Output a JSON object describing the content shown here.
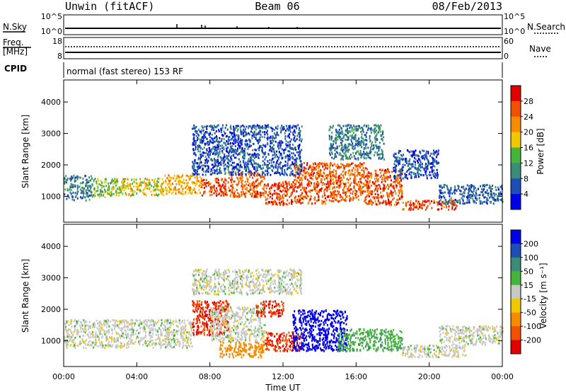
{
  "header": {
    "station": "Unwin (fitACF)",
    "beam": "Beam 06",
    "date": "08/Feb/2013"
  },
  "panels": {
    "nsky": {
      "left_label": "N.Sky",
      "ticks_left": [
        "10^5",
        "10^0"
      ],
      "ticks_right": [
        "10^5",
        "10^0"
      ],
      "right_label": "N.Search"
    },
    "freq": {
      "left_label_1": "Freq.",
      "left_label_2": "[MHz]",
      "ticks_left": [
        "18",
        "8"
      ],
      "ticks_right": [
        "60",
        "0"
      ],
      "right_label": "Nave"
    },
    "cpid": {
      "label": "CPID",
      "text": "normal (fast stereo) 153 RF"
    }
  },
  "colors": {
    "power": [
      "#0000e6",
      "#1e4fb4",
      "#3c8a78",
      "#46b43c",
      "#f0c800",
      "#f58c00",
      "#f05000",
      "#e00000"
    ],
    "velocity": [
      "#e00000",
      "#f05000",
      "#f58c00",
      "#f0c800",
      "#c8c8c8",
      "#46b43c",
      "#3c8a78",
      "#1e4fb4",
      "#0000e6"
    ],
    "ground": "#c8c8c8"
  },
  "chart_data": [
    {
      "type": "heatmap",
      "ylabel": "Slant Range [km]",
      "xlabel": "",
      "x_ticks": [
        "00:00",
        "04:00",
        "08:00",
        "12:00",
        "16:00",
        "20:00",
        "00:00"
      ],
      "y_ticks": [
        "1000",
        "2000",
        "3000",
        "4000"
      ],
      "x_range_hours": [
        0,
        24
      ],
      "ylim": [
        180,
        4700
      ],
      "colorbar": {
        "label": "Power [dB]",
        "ticks": [
          "4",
          "8",
          "12",
          "16",
          "20",
          "24",
          "28"
        ],
        "range": [
          0,
          32
        ]
      },
      "bands": [
        {
          "t_start": 0.0,
          "t_end": 1.5,
          "r_low": 900,
          "r_high": 1700,
          "value": 9
        },
        {
          "t_start": 1.5,
          "t_end": 3.0,
          "r_low": 1000,
          "r_high": 1600,
          "value": 15
        },
        {
          "t_start": 3.0,
          "t_end": 5.5,
          "r_low": 1050,
          "r_high": 1600,
          "value": 18
        },
        {
          "t_start": 5.5,
          "t_end": 7.5,
          "r_low": 1100,
          "r_high": 1700,
          "value": 21
        },
        {
          "t_start": 7.5,
          "t_end": 9.0,
          "r_low": 1050,
          "r_high": 1600,
          "value": 27
        },
        {
          "t_start": 9.0,
          "t_end": 11.0,
          "r_low": 1000,
          "r_high": 1800,
          "value": 25
        },
        {
          "t_start": 11.0,
          "t_end": 12.5,
          "r_low": 750,
          "r_high": 1500,
          "value": 27
        },
        {
          "t_start": 12.5,
          "t_end": 14.5,
          "r_low": 800,
          "r_high": 2100,
          "value": 26
        },
        {
          "t_start": 14.5,
          "t_end": 16.5,
          "r_low": 850,
          "r_high": 2100,
          "value": 25
        },
        {
          "t_start": 16.5,
          "t_end": 18.5,
          "r_low": 750,
          "r_high": 1900,
          "value": 26
        },
        {
          "t_start": 18.5,
          "t_end": 21.5,
          "r_low": 600,
          "r_high": 900,
          "value": 27
        },
        {
          "t_start": 7.0,
          "t_end": 13.0,
          "r_low": 1700,
          "r_high": 3300,
          "value": 6
        },
        {
          "t_start": 14.5,
          "t_end": 17.5,
          "r_low": 2200,
          "r_high": 3300,
          "value": 9
        },
        {
          "t_start": 18.0,
          "t_end": 20.5,
          "r_low": 1600,
          "r_high": 2500,
          "value": 6
        },
        {
          "t_start": 20.5,
          "t_end": 24.0,
          "r_low": 800,
          "r_high": 1400,
          "value": 7
        }
      ]
    },
    {
      "type": "heatmap",
      "ylabel": "Slant Range [km]",
      "xlabel": "Time UT",
      "x_ticks": [
        "00:00",
        "04:00",
        "08:00",
        "12:00",
        "16:00",
        "20:00",
        "00:00"
      ],
      "y_ticks": [
        "1000",
        "2000",
        "3000",
        "4000"
      ],
      "x_range_hours": [
        0,
        24
      ],
      "ylim": [
        180,
        4700
      ],
      "colorbar": {
        "label": "Velocity [m s⁻¹]",
        "ticks": [
          "200",
          "100",
          "50",
          "15",
          "-15",
          "-50",
          "-100",
          "-200"
        ],
        "range": [
          -250,
          250
        ]
      },
      "bands": [
        {
          "t_start": 0.0,
          "t_end": 7.0,
          "r_low": 800,
          "r_high": 1700,
          "value": 0
        },
        {
          "t_start": 7.0,
          "t_end": 9.0,
          "r_low": 1200,
          "r_high": 2300,
          "value": -200
        },
        {
          "t_start": 8.0,
          "t_end": 11.0,
          "r_low": 1000,
          "r_high": 2100,
          "value": 0
        },
        {
          "t_start": 8.5,
          "t_end": 11.0,
          "r_low": 500,
          "r_high": 1000,
          "value": -70
        },
        {
          "t_start": 10.5,
          "t_end": 12.0,
          "r_low": 1800,
          "r_high": 2300,
          "value": -200
        },
        {
          "t_start": 11.0,
          "t_end": 13.0,
          "r_low": 700,
          "r_high": 1300,
          "value": -200
        },
        {
          "t_start": 12.5,
          "t_end": 15.5,
          "r_low": 700,
          "r_high": 2000,
          "value": 230
        },
        {
          "t_start": 15.0,
          "t_end": 18.5,
          "r_low": 700,
          "r_high": 1400,
          "value": 40
        },
        {
          "t_start": 18.5,
          "t_end": 22.0,
          "r_low": 500,
          "r_high": 900,
          "value": 0
        },
        {
          "t_start": 20.5,
          "t_end": 24.0,
          "r_low": 900,
          "r_high": 1500,
          "value": 0
        },
        {
          "t_start": 7.0,
          "t_end": 13.0,
          "r_low": 2500,
          "r_high": 3300,
          "value": 0
        }
      ]
    }
  ]
}
